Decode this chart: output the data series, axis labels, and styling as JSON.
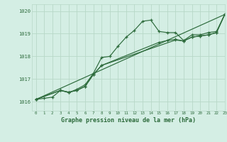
{
  "bg_color": "#d4eee4",
  "grid_color": "#b8d8c8",
  "line_color": "#2d6b3c",
  "title": "Graphe pression niveau de la mer (hPa)",
  "xlim": [
    -0.5,
    23
  ],
  "ylim": [
    1015.6,
    1020.3
  ],
  "yticks": [
    1016,
    1017,
    1018,
    1019,
    1020
  ],
  "xticks": [
    0,
    1,
    2,
    3,
    4,
    5,
    6,
    7,
    8,
    9,
    10,
    11,
    12,
    13,
    14,
    15,
    16,
    17,
    18,
    19,
    20,
    21,
    22,
    23
  ],
  "line1_x": [
    0,
    1,
    2,
    3,
    4,
    5,
    6,
    7,
    8,
    9,
    10,
    11,
    12,
    13,
    14,
    15,
    16,
    17,
    18,
    19,
    20,
    21,
    22,
    23
  ],
  "line1_y": [
    1016.1,
    1016.15,
    1016.2,
    1016.5,
    1016.4,
    1016.55,
    1016.75,
    1017.25,
    1017.95,
    1018.0,
    1018.45,
    1018.85,
    1019.15,
    1019.55,
    1019.6,
    1019.1,
    1019.05,
    1019.05,
    1018.7,
    1018.95,
    1018.95,
    1019.05,
    1019.1,
    1019.85
  ],
  "line2_x": [
    0,
    23
  ],
  "line2_y": [
    1016.1,
    1019.85
  ],
  "line3_x": [
    0,
    3,
    4,
    5,
    6,
    7,
    8,
    17,
    18,
    19,
    20,
    21,
    22,
    23
  ],
  "line3_y": [
    1016.1,
    1016.5,
    1016.42,
    1016.5,
    1016.68,
    1017.2,
    1017.6,
    1018.72,
    1018.68,
    1018.85,
    1018.9,
    1018.95,
    1019.05,
    1019.85
  ],
  "line4_x": [
    0,
    3,
    4,
    5,
    6,
    7,
    8,
    15,
    16,
    17,
    18,
    19,
    20,
    21,
    22,
    23
  ],
  "line4_y": [
    1016.1,
    1016.5,
    1016.42,
    1016.5,
    1016.68,
    1017.2,
    1017.6,
    1018.62,
    1018.7,
    1018.75,
    1018.68,
    1018.85,
    1018.9,
    1018.95,
    1019.05,
    1019.85
  ]
}
